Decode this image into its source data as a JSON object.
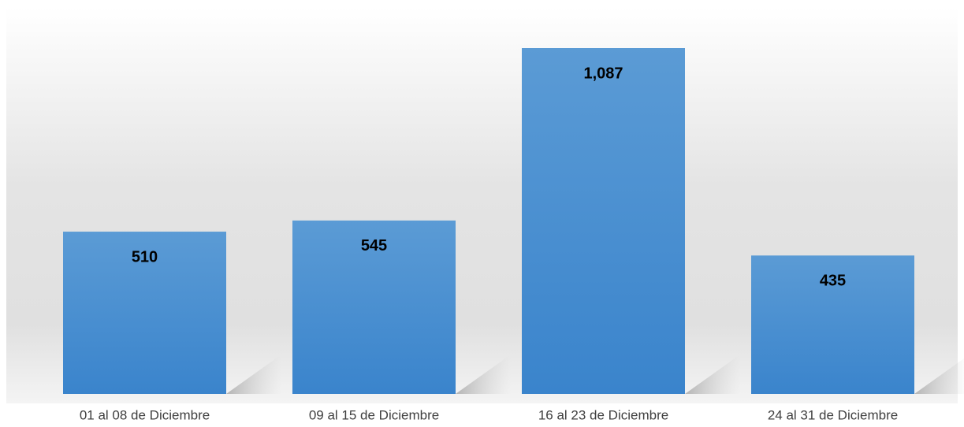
{
  "chart_data": {
    "type": "bar",
    "categories": [
      "01 al 08 de Diciembre",
      "09 al 15 de Diciembre",
      "16 al 23 de Diciembre",
      "24 al 31 de Diciembre"
    ],
    "values": [
      510,
      545,
      1087,
      435
    ],
    "value_labels": [
      "510",
      "545",
      "1,087",
      "435"
    ],
    "color": "#4a90d4"
  }
}
